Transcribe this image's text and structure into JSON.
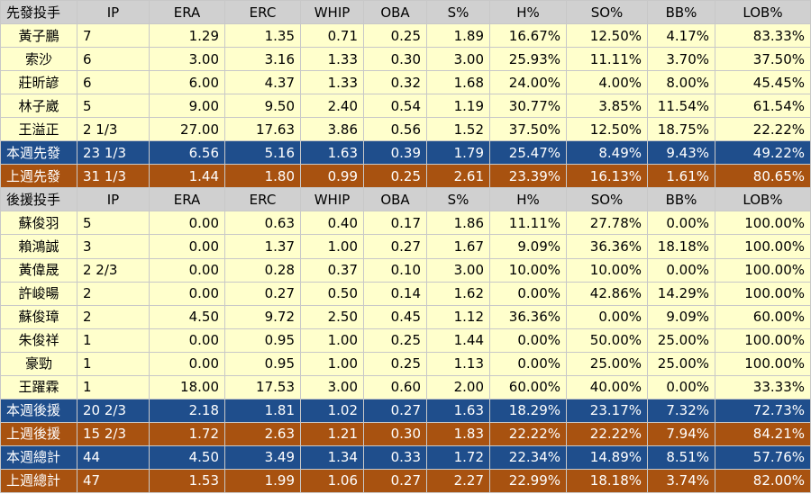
{
  "starters": {
    "header": [
      "先發投手",
      "IP",
      "ERA",
      "ERC",
      "WHIP",
      "OBA",
      "S%",
      "H%",
      "SO%",
      "BB%",
      "LOB%"
    ],
    "rows": [
      [
        "黃子鵬",
        "7",
        "1.29",
        "1.35",
        "0.71",
        "0.25",
        "1.89",
        "16.67%",
        "12.50%",
        "4.17%",
        "83.33%"
      ],
      [
        "索沙",
        "6",
        "3.00",
        "3.16",
        "1.33",
        "0.30",
        "3.00",
        "25.93%",
        "11.11%",
        "3.70%",
        "37.50%"
      ],
      [
        "莊昕諺",
        "6",
        "6.00",
        "4.37",
        "1.33",
        "0.32",
        "1.68",
        "24.00%",
        "4.00%",
        "8.00%",
        "45.45%"
      ],
      [
        "林子崴",
        "5",
        "9.00",
        "9.50",
        "2.40",
        "0.54",
        "1.19",
        "30.77%",
        "3.85%",
        "11.54%",
        "61.54%"
      ],
      [
        "王溢正",
        "2 1/3",
        "27.00",
        "17.63",
        "3.86",
        "0.56",
        "1.52",
        "37.50%",
        "12.50%",
        "18.75%",
        "22.22%"
      ]
    ],
    "this_week": [
      "本週先發",
      "23 1/3",
      "6.56",
      "5.16",
      "1.63",
      "0.39",
      "1.79",
      "25.47%",
      "8.49%",
      "9.43%",
      "49.22%"
    ],
    "last_week": [
      "上週先發",
      "31 1/3",
      "1.44",
      "1.80",
      "0.99",
      "0.25",
      "2.61",
      "23.39%",
      "16.13%",
      "1.61%",
      "80.65%"
    ]
  },
  "relievers": {
    "header": [
      "後援投手",
      "IP",
      "ERA",
      "ERC",
      "WHIP",
      "OBA",
      "S%",
      "H%",
      "SO%",
      "BB%",
      "LOB%"
    ],
    "rows": [
      [
        "蘇俊羽",
        "5",
        "0.00",
        "0.63",
        "0.40",
        "0.17",
        "1.86",
        "11.11%",
        "27.78%",
        "0.00%",
        "100.00%"
      ],
      [
        "賴鴻誠",
        "3",
        "0.00",
        "1.37",
        "1.00",
        "0.27",
        "1.67",
        "9.09%",
        "36.36%",
        "18.18%",
        "100.00%"
      ],
      [
        "黃偉晟",
        "2 2/3",
        "0.00",
        "0.28",
        "0.37",
        "0.10",
        "3.00",
        "10.00%",
        "10.00%",
        "0.00%",
        "100.00%"
      ],
      [
        "許峻暘",
        "2",
        "0.00",
        "0.27",
        "0.50",
        "0.14",
        "1.62",
        "0.00%",
        "42.86%",
        "14.29%",
        "100.00%"
      ],
      [
        "蘇俊璋",
        "2",
        "4.50",
        "9.72",
        "2.50",
        "0.45",
        "1.12",
        "36.36%",
        "0.00%",
        "9.09%",
        "60.00%"
      ],
      [
        "朱俊祥",
        "1",
        "0.00",
        "0.95",
        "1.00",
        "0.25",
        "1.44",
        "0.00%",
        "50.00%",
        "25.00%",
        "100.00%"
      ],
      [
        "豪勁",
        "1",
        "0.00",
        "0.95",
        "1.00",
        "0.25",
        "1.13",
        "0.00%",
        "25.00%",
        "25.00%",
        "100.00%"
      ],
      [
        "王躍霖",
        "1",
        "18.00",
        "17.53",
        "3.00",
        "0.60",
        "2.00",
        "60.00%",
        "40.00%",
        "0.00%",
        "33.33%"
      ]
    ],
    "this_week": [
      "本週後援",
      "20 2/3",
      "2.18",
      "1.81",
      "1.02",
      "0.27",
      "1.63",
      "18.29%",
      "23.17%",
      "7.32%",
      "72.73%"
    ],
    "last_week": [
      "上週後援",
      "15 2/3",
      "1.72",
      "2.63",
      "1.21",
      "0.30",
      "1.83",
      "22.22%",
      "22.22%",
      "7.94%",
      "84.21%"
    ]
  },
  "totals": {
    "this_week": [
      "本週總計",
      "44",
      "4.50",
      "3.49",
      "1.34",
      "0.33",
      "1.72",
      "22.34%",
      "14.89%",
      "8.51%",
      "57.76%"
    ],
    "last_week": [
      "上週總計",
      "47",
      "1.53",
      "1.99",
      "1.06",
      "0.27",
      "2.27",
      "22.99%",
      "18.18%",
      "3.74%",
      "82.00%"
    ]
  },
  "colors": {
    "header_bg": "#d0d0d0",
    "player_bg": "#ffffcc",
    "this_week_bg": "#1f4e8c",
    "last_week_bg": "#a85210"
  }
}
